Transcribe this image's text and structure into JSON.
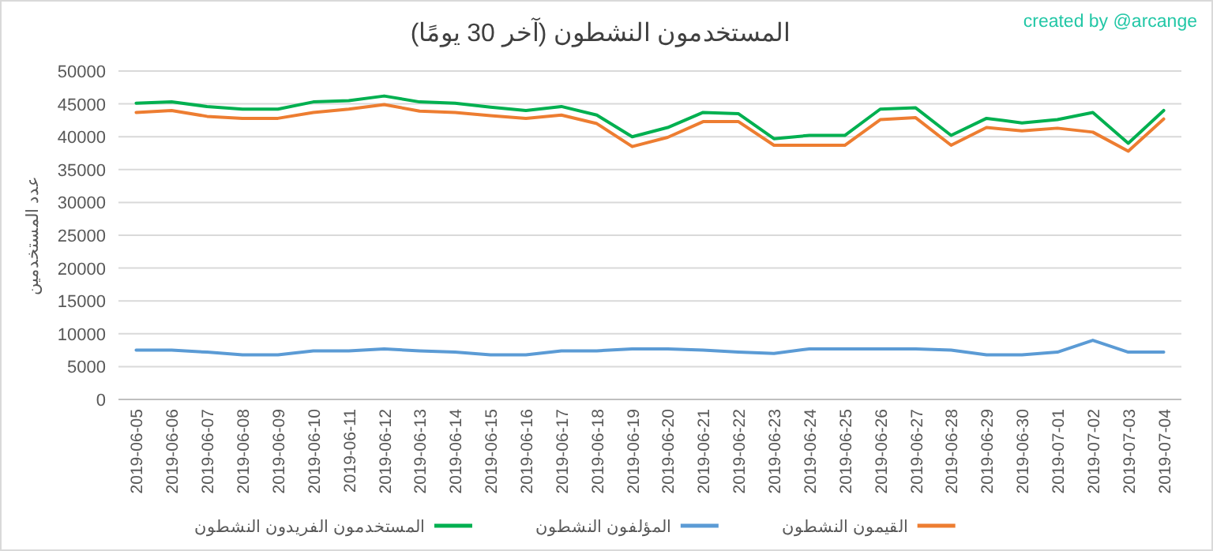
{
  "chart_data": {
    "type": "line",
    "title": "المستخدمون النشطون (آخر 30 يومًا)",
    "ylabel": "عدد المستخدمين",
    "annotations": [
      "created by @arcange"
    ],
    "categories": [
      "2019-06-05",
      "2019-06-06",
      "2019-06-07",
      "2019-06-08",
      "2019-06-09",
      "2019-06-10",
      "2019-06-11",
      "2019-06-12",
      "2019-06-13",
      "2019-06-14",
      "2019-06-15",
      "2019-06-16",
      "2019-06-17",
      "2019-06-18",
      "2019-06-19",
      "2019-06-20",
      "2019-06-21",
      "2019-06-22",
      "2019-06-23",
      "2019-06-24",
      "2019-06-25",
      "2019-06-26",
      "2019-06-27",
      "2019-06-28",
      "2019-06-29",
      "2019-06-30",
      "2019-07-01",
      "2019-07-02",
      "2019-07-03",
      "2019-07-04"
    ],
    "series": [
      {
        "name": "القيمون النشطون",
        "color": "#ed7d31",
        "values": [
          43700,
          44000,
          43100,
          42800,
          42800,
          43700,
          44200,
          44900,
          43900,
          43700,
          43200,
          42800,
          43300,
          42000,
          38500,
          39900,
          42300,
          42300,
          38700,
          38700,
          38700,
          42600,
          42900,
          38700,
          41400,
          40900,
          41300,
          40700,
          37800,
          42700
        ]
      },
      {
        "name": "المؤلفون النشطون",
        "color": "#5b9bd5",
        "values": [
          7500,
          7500,
          7200,
          6800,
          6800,
          7400,
          7400,
          7700,
          7400,
          7200,
          6800,
          6800,
          7400,
          7400,
          7700,
          7700,
          7500,
          7200,
          7000,
          7700,
          7700,
          7700,
          7700,
          7500,
          6800,
          6800,
          7200,
          9000,
          7200,
          7200
        ]
      },
      {
        "name": "المستخدمون الفريدون النشطون",
        "color": "#00b050",
        "values": [
          45100,
          45300,
          44600,
          44200,
          44200,
          45300,
          45500,
          46200,
          45300,
          45100,
          44500,
          44000,
          44600,
          43300,
          40000,
          41400,
          43700,
          43500,
          39700,
          40200,
          40200,
          44200,
          44400,
          40200,
          42800,
          42100,
          42600,
          43700,
          39000,
          44000
        ]
      }
    ],
    "ylim": [
      0,
      50000
    ],
    "yticks": [
      0,
      5000,
      10000,
      15000,
      20000,
      25000,
      30000,
      35000,
      40000,
      45000,
      50000
    ],
    "grid": "y",
    "legend": "bottom",
    "line_style": "solid",
    "marker": "none"
  }
}
